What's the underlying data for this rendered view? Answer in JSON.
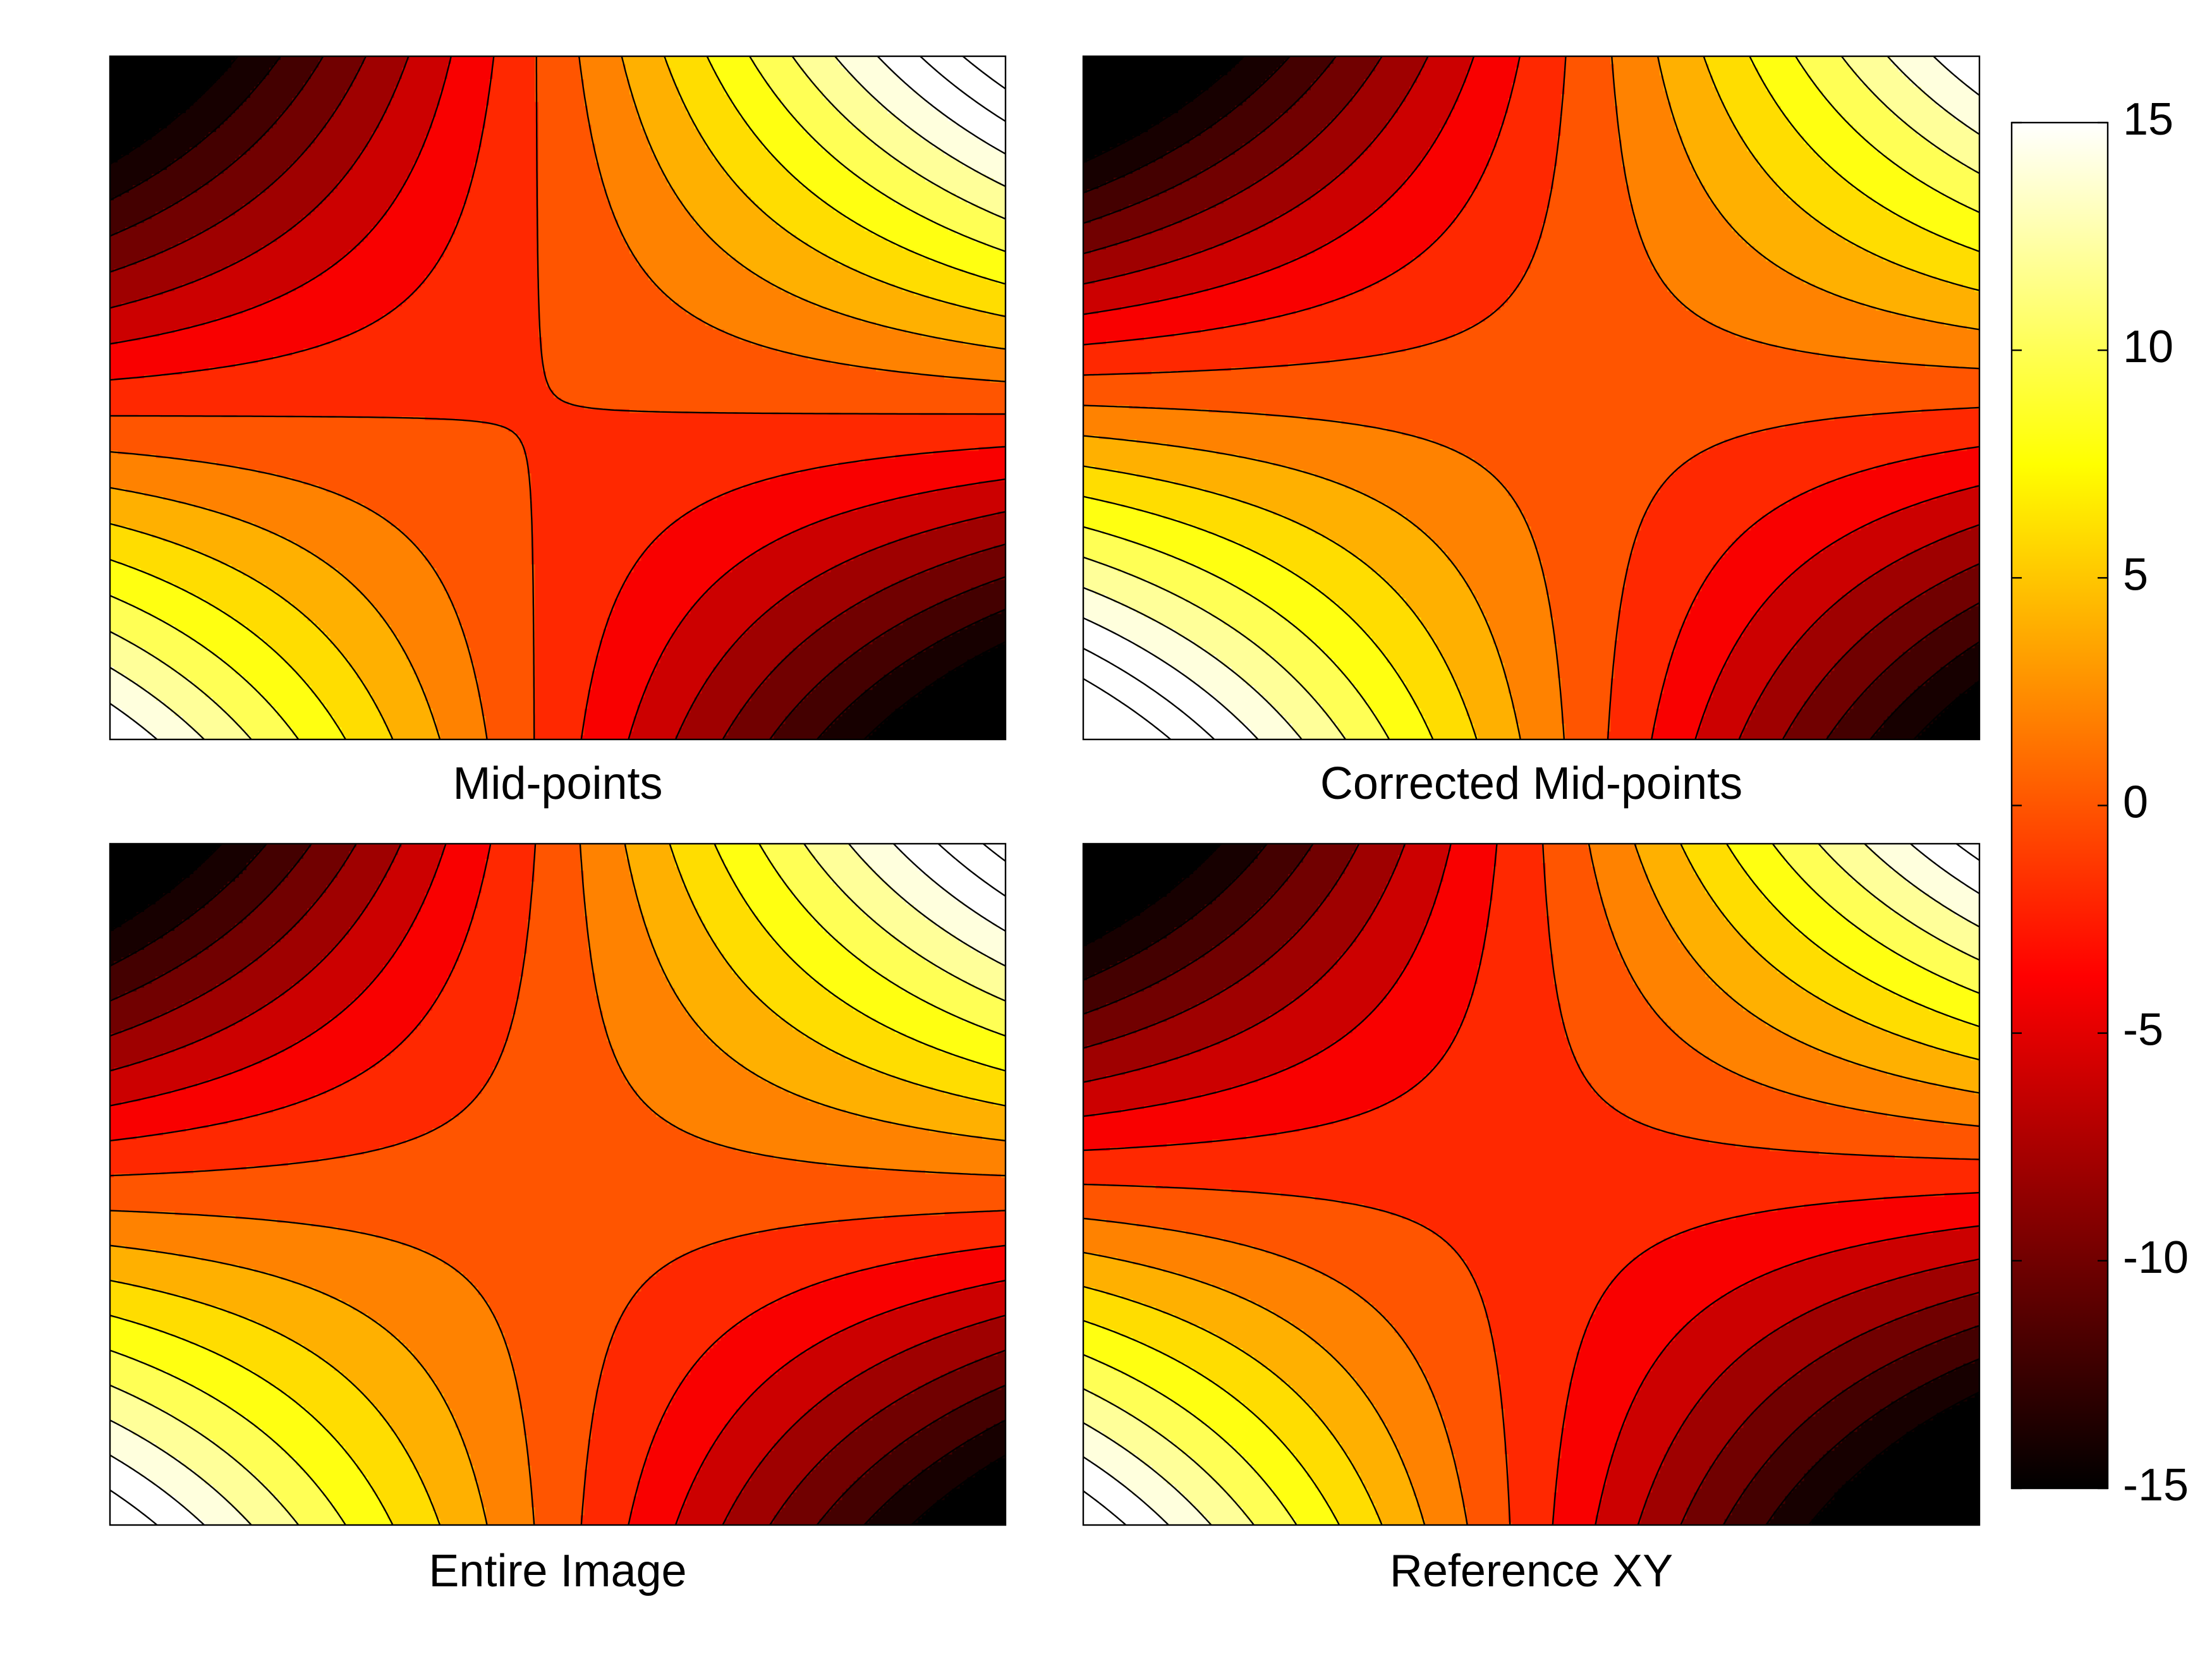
{
  "chart_data": {
    "type": "contour",
    "colormap": "hot",
    "levels": [
      -19,
      -17,
      -15,
      -13,
      -11,
      -9,
      -7,
      -5,
      -3,
      -1,
      1,
      3,
      5,
      7,
      9,
      11,
      13,
      15,
      17,
      19
    ],
    "clim": [
      -15,
      15
    ],
    "cticks": [
      -15,
      -10,
      -5,
      0,
      5,
      10,
      15
    ],
    "panels": [
      {
        "title": "Mid-points",
        "z": [
          [
            -21,
            21
          ],
          [
            17,
            -21
          ]
        ]
      },
      {
        "title": "Corrected Mid-points",
        "z": [
          [
            -22,
            17
          ],
          [
            23,
            -18
          ]
        ]
      },
      {
        "title": "Entire Image",
        "z": [
          [
            -20,
            20
          ],
          [
            19,
            -19
          ]
        ]
      },
      {
        "title": "Reference XY",
        "z": [
          [
            -21,
            18
          ],
          [
            19,
            -23
          ]
        ]
      }
    ]
  }
}
